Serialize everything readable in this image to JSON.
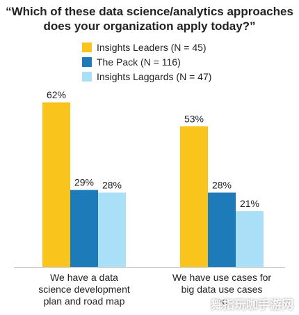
{
  "chart_data": {
    "type": "bar",
    "title_line1": "“Which of these data science/analytics approaches",
    "title_line2": "does your organization apply today?”",
    "series": [
      {
        "name": "Insights Leaders (N = 45)",
        "color": "#F9C51D",
        "values": [
          62,
          53
        ],
        "labels": [
          "62%",
          "53%"
        ]
      },
      {
        "name": "The Pack (N = 116)",
        "color": "#1C7BB8",
        "values": [
          29,
          28
        ],
        "labels": [
          "29%",
          "28%"
        ]
      },
      {
        "name": "Insights Laggards (N = 47)",
        "color": "#A9DFF7",
        "values": [
          28,
          21
        ],
        "labels": [
          "28%",
          "21%"
        ]
      }
    ],
    "categories": [
      [
        "We have a data",
        "science development",
        "plan and road map"
      ],
      [
        "We have use cases for",
        "big data use cases",
        "ac"
      ]
    ],
    "ylim": [
      0,
      62
    ],
    "grid": false
  },
  "watermark": "舞指玩咖手游网"
}
